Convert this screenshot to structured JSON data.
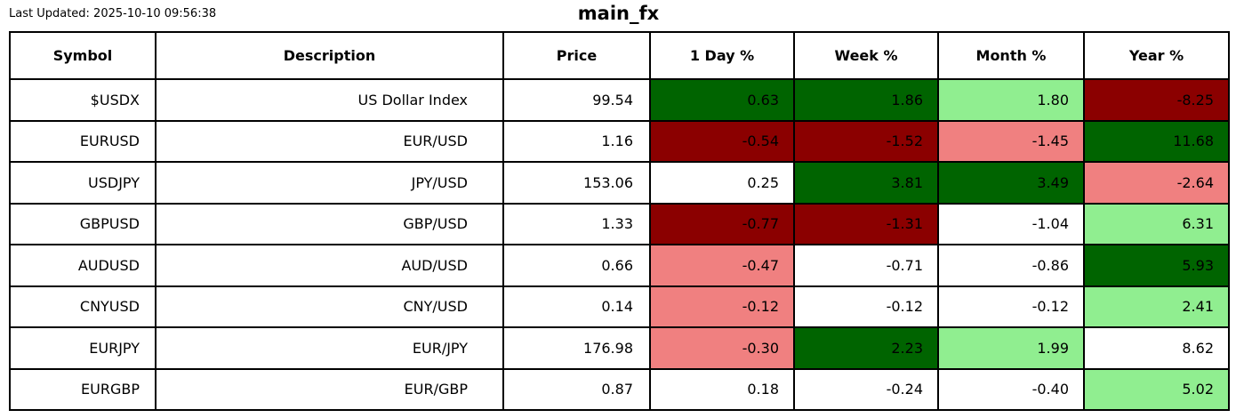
{
  "meta": {
    "last_updated": "Last Updated: 2025-10-10 09:56:38",
    "title": "main_fx"
  },
  "colors": {
    "dark_green": "#006400",
    "light_green": "#90EE90",
    "dark_red": "#8B0000",
    "light_red": "#F08080",
    "white": "#FFFFFF",
    "border": "#000000",
    "text": "#000000"
  },
  "chart_data": {
    "type": "table",
    "title": "main_fx",
    "columns": [
      "Symbol",
      "Description",
      "Price",
      "1 Day %",
      "Week %",
      "Month %",
      "Year %"
    ],
    "rows": [
      {
        "symbol": "$USDX",
        "description": "US Dollar Index",
        "price": "99.54",
        "day": "0.63",
        "week": "1.86",
        "month": "1.80",
        "year": "-8.25",
        "cell_colors": [
          "dark_green",
          "dark_green",
          "light_green",
          "dark_red"
        ]
      },
      {
        "symbol": "EURUSD",
        "description": "EUR/USD",
        "price": "1.16",
        "day": "-0.54",
        "week": "-1.52",
        "month": "-1.45",
        "year": "11.68",
        "cell_colors": [
          "dark_red",
          "dark_red",
          "light_red",
          "dark_green"
        ]
      },
      {
        "symbol": "USDJPY",
        "description": "JPY/USD",
        "price": "153.06",
        "day": "0.25",
        "week": "3.81",
        "month": "3.49",
        "year": "-2.64",
        "cell_colors": [
          "white",
          "dark_green",
          "dark_green",
          "light_red"
        ]
      },
      {
        "symbol": "GBPUSD",
        "description": "GBP/USD",
        "price": "1.33",
        "day": "-0.77",
        "week": "-1.31",
        "month": "-1.04",
        "year": "6.31",
        "cell_colors": [
          "dark_red",
          "dark_red",
          "white",
          "light_green"
        ]
      },
      {
        "symbol": "AUDUSD",
        "description": "AUD/USD",
        "price": "0.66",
        "day": "-0.47",
        "week": "-0.71",
        "month": "-0.86",
        "year": "5.93",
        "cell_colors": [
          "light_red",
          "white",
          "white",
          "dark_green"
        ]
      },
      {
        "symbol": "CNYUSD",
        "description": "CNY/USD",
        "price": "0.14",
        "day": "-0.12",
        "week": "-0.12",
        "month": "-0.12",
        "year": "2.41",
        "cell_colors": [
          "light_red",
          "white",
          "white",
          "light_green"
        ]
      },
      {
        "symbol": "EURJPY",
        "description": "EUR/JPY",
        "price": "176.98",
        "day": "-0.30",
        "week": "2.23",
        "month": "1.99",
        "year": "8.62",
        "cell_colors": [
          "light_red",
          "dark_green",
          "light_green",
          "white"
        ]
      },
      {
        "symbol": "EURGBP",
        "description": "EUR/GBP",
        "price": "0.87",
        "day": "0.18",
        "week": "-0.24",
        "month": "-0.40",
        "year": "5.02",
        "cell_colors": [
          "white",
          "white",
          "white",
          "light_green"
        ]
      }
    ]
  }
}
